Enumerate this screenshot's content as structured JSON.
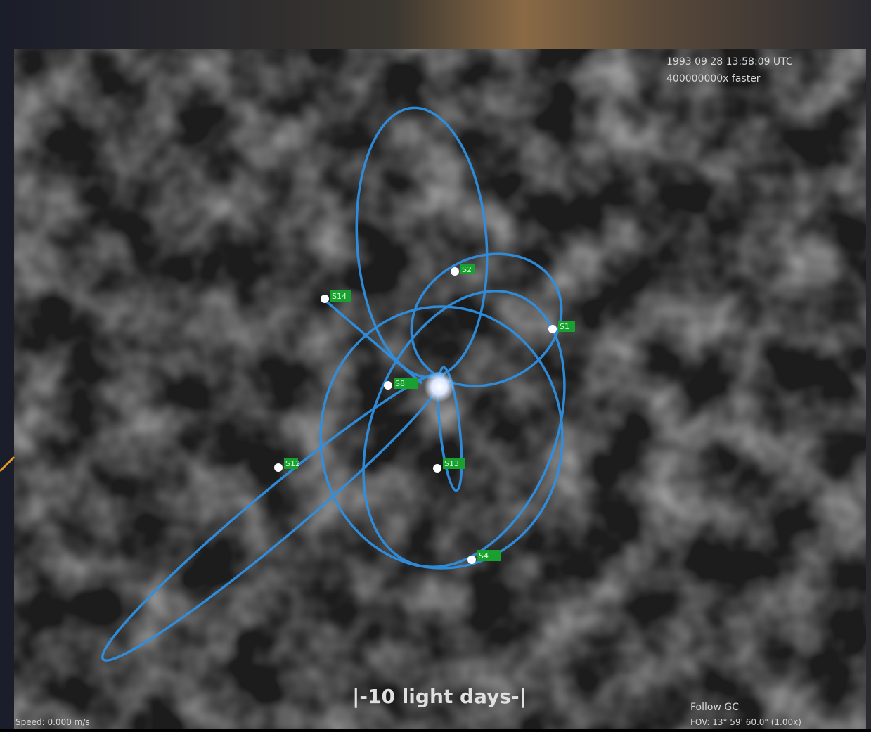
{
  "header": {
    "time": "1993 09 28 13:58:09 UTC",
    "rate": "400000000x faster"
  },
  "scale_bar": "|-10 light days-|",
  "footer": {
    "speed": "Speed: 0.000 m/s",
    "follow": "Follow GC",
    "fov": "FOV: 13° 59' 60.0\" (1.00x)"
  },
  "stars": [
    {
      "label": "S2"
    },
    {
      "label": "S14"
    },
    {
      "label": "S1"
    },
    {
      "label": "S8"
    },
    {
      "label": "S12"
    },
    {
      "label": "S13"
    },
    {
      "label": "S4"
    }
  ]
}
